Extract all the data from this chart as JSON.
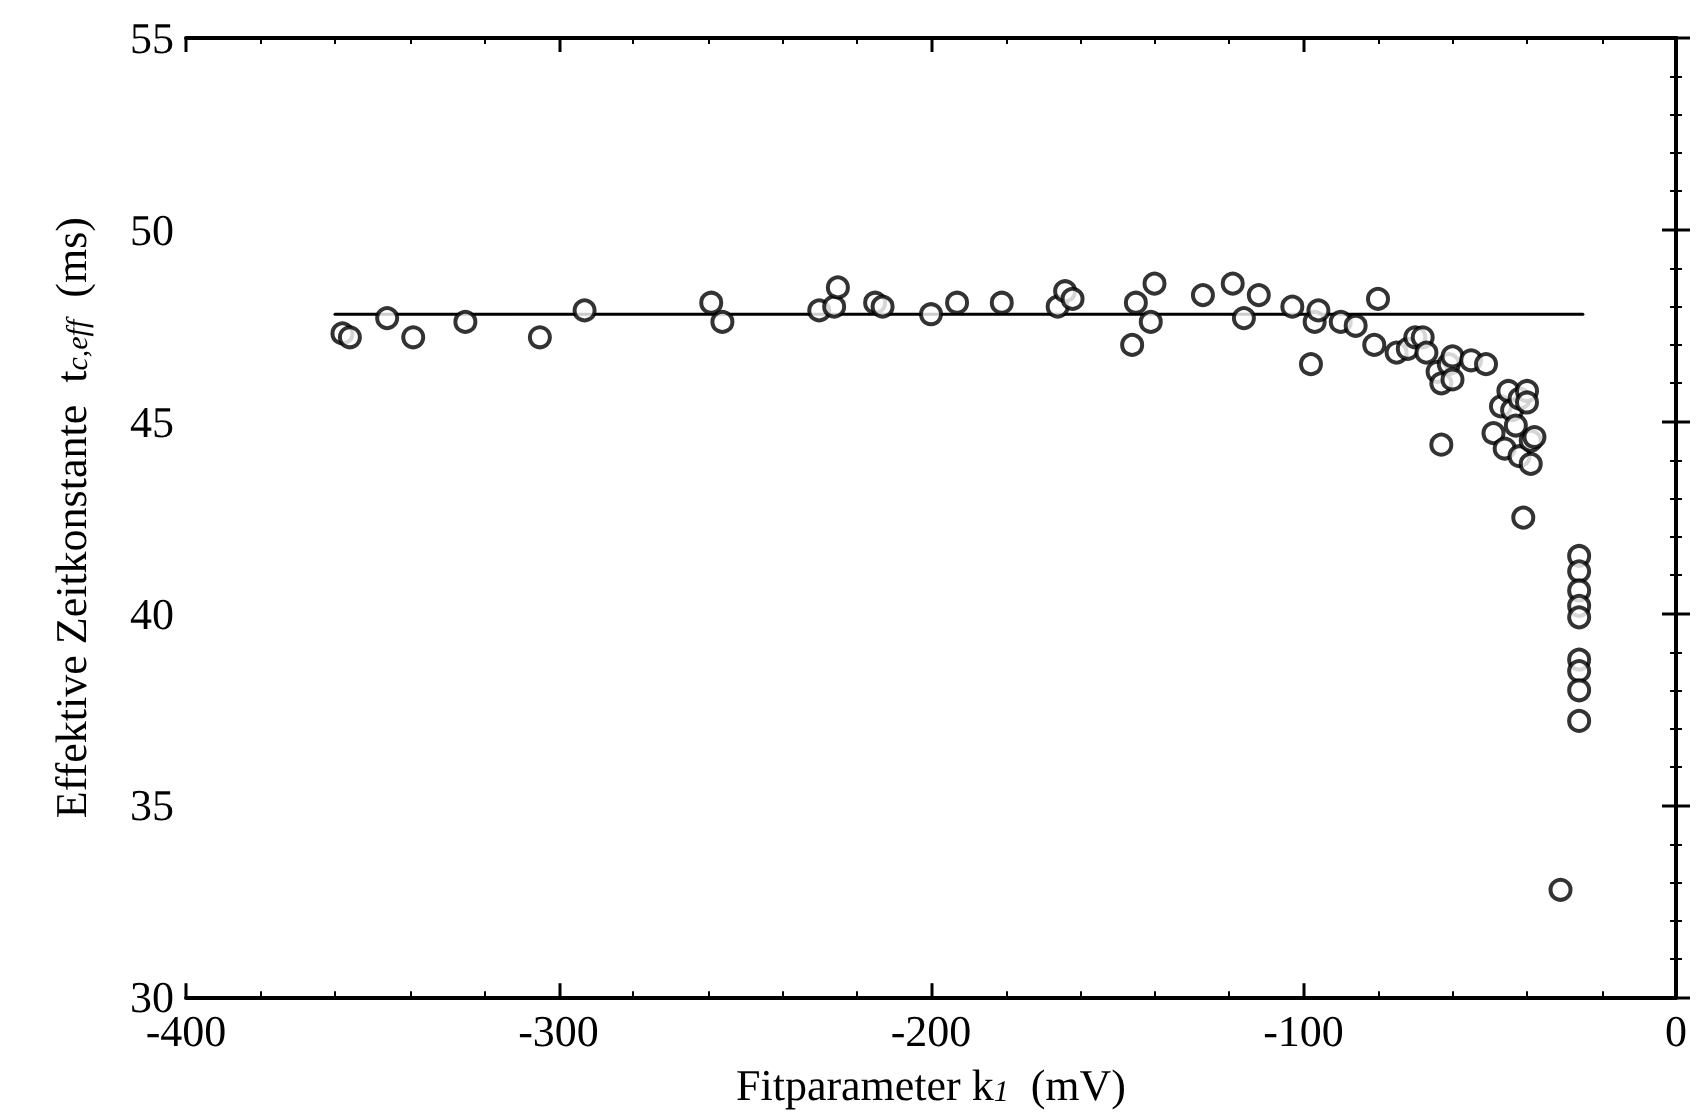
{
  "chart_data": {
    "type": "scatter",
    "xlabel": "Fitparameter k$_{1}$  (mV)",
    "ylabel": "Effektive Zeitkonstante  t$_{c,eff}$  (ms)",
    "xlim": [
      -400,
      0
    ],
    "xticks": [
      -400,
      -300,
      -200,
      -100,
      0
    ],
    "ylim": [
      30,
      55
    ],
    "yticks": [
      30,
      35,
      40,
      45,
      50,
      55
    ],
    "grid": false,
    "series": [
      {
        "color": "#000000",
        "marker": "circle",
        "x": [
          -358,
          -356,
          -346,
          -339,
          -325,
          -305,
          -293,
          -259,
          -256,
          -230,
          -226,
          -225,
          -215,
          -213,
          -200,
          -193,
          -181,
          -166,
          -164,
          -162,
          -146,
          -145,
          -141,
          -140,
          -127,
          -119,
          -116,
          -112,
          -103,
          -98,
          -97,
          -96,
          -90,
          -86,
          -81,
          -80,
          -75,
          -72,
          -70,
          -68,
          -67,
          -64,
          -63,
          -63,
          -61,
          -60,
          -60,
          -55,
          -51,
          -49,
          -47,
          -46,
          -45,
          -44,
          -43,
          -42,
          -42,
          -41,
          -40,
          -40,
          -39,
          -39,
          -38,
          -31,
          -26,
          -26,
          -26,
          -26,
          -26,
          -26,
          -26,
          -26,
          -26
        ],
        "values": [
          47.3,
          47.2,
          47.7,
          47.2,
          47.6,
          47.2,
          47.9,
          48.1,
          47.6,
          47.9,
          48.0,
          48.5,
          48.1,
          48.0,
          47.8,
          48.1,
          48.1,
          48.0,
          48.4,
          48.2,
          47.0,
          48.1,
          47.6,
          48.6,
          48.3,
          48.6,
          47.7,
          48.3,
          48.0,
          46.5,
          47.6,
          47.9,
          47.6,
          47.5,
          47.0,
          48.2,
          46.8,
          46.9,
          47.2,
          47.2,
          46.8,
          46.3,
          46.0,
          44.4,
          46.5,
          46.7,
          46.1,
          46.6,
          46.5,
          44.7,
          45.4,
          44.3,
          45.8,
          45.3,
          44.9,
          45.6,
          44.1,
          42.5,
          45.8,
          45.5,
          44.5,
          43.9,
          44.6,
          32.8,
          41.5,
          41.1,
          40.6,
          40.2,
          39.9,
          38.8,
          38.5,
          38.0,
          37.2
        ]
      },
      {
        "type": "line",
        "color": "#000000",
        "marker": "none",
        "line_style": "solid",
        "x": [
          -360,
          -25
        ],
        "values": [
          47.8,
          47.8
        ]
      }
    ]
  }
}
